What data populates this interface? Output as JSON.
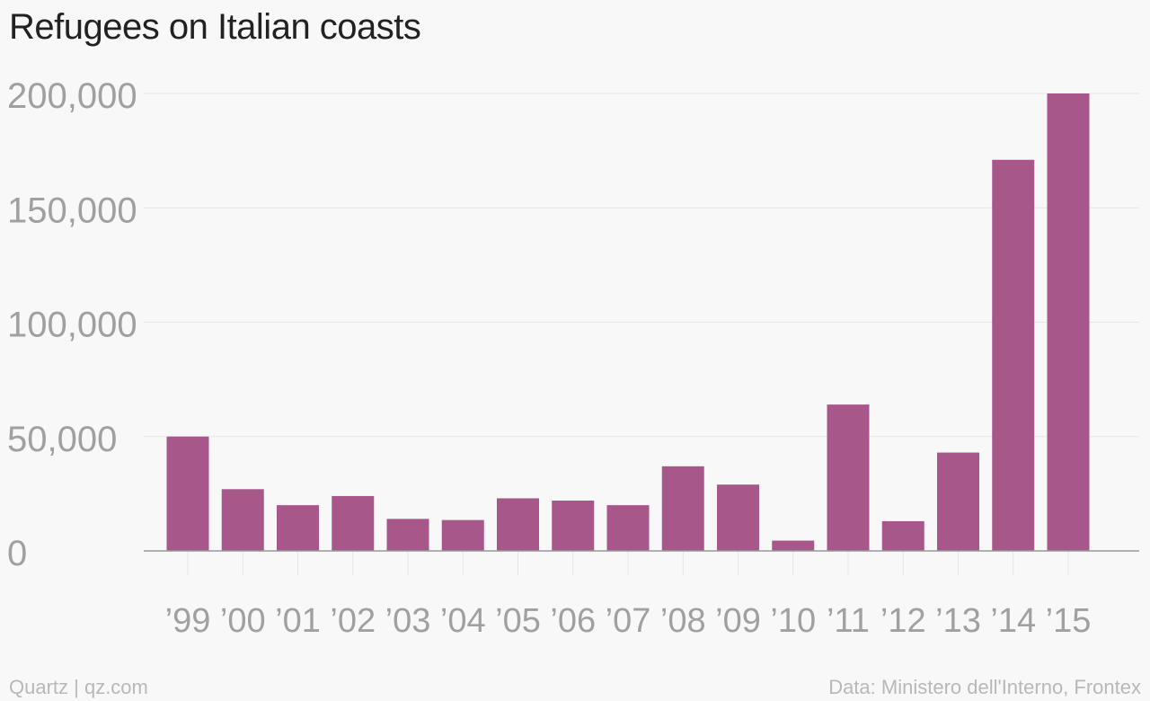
{
  "chart_data": {
    "type": "bar",
    "title": "Refugees on Italian coasts",
    "categories": [
      "’99",
      "’00",
      "’01",
      "’02",
      "’03",
      "’04",
      "’05",
      "’06",
      "’07",
      "’08",
      "’09",
      "’10",
      "’11",
      "’12",
      "’13",
      "’14",
      "’15"
    ],
    "values": [
      50000,
      27000,
      20000,
      24000,
      14000,
      13500,
      23000,
      22000,
      20000,
      37000,
      29000,
      4500,
      64000,
      13000,
      43000,
      171000,
      200000
    ],
    "ylim": [
      0,
      200000
    ],
    "yticks": [
      0,
      50000,
      100000,
      150000,
      200000
    ],
    "ytick_labels": [
      "0",
      "50,000",
      "100,000",
      "150,000",
      "200,000"
    ],
    "xlabel": "",
    "ylabel": "",
    "grid": true,
    "bar_color": "#a8578a"
  },
  "footer": {
    "source_left": "Quartz | qz.com",
    "source_right": "Data: Ministero dell'Interno, Frontex"
  }
}
